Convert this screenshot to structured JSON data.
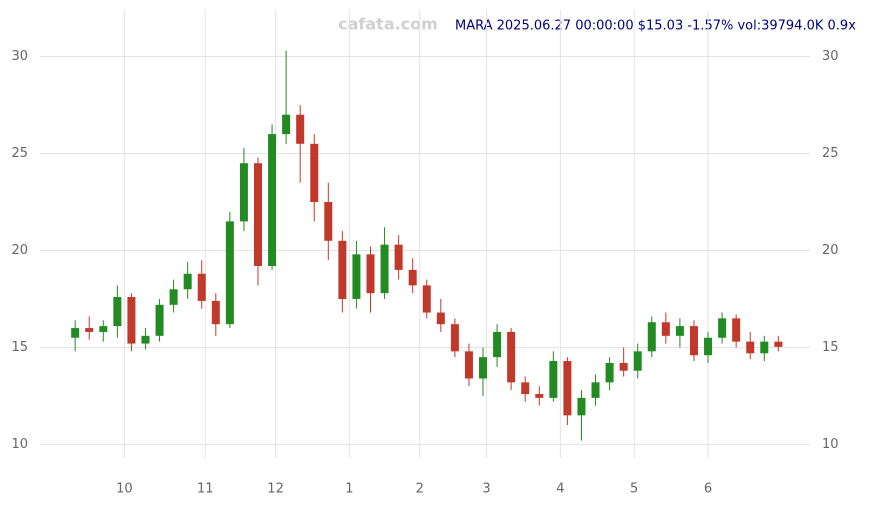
{
  "chart_data": {
    "type": "candlestick",
    "watermark": "cafata.com",
    "title": "MARA 2025.06.27 00:00:00 $15.03 -1.57% vol:39794.0K 0.9x",
    "x": [
      -14,
      -10,
      -6,
      -2,
      2,
      6,
      10,
      14,
      18,
      22,
      26,
      30,
      34,
      38,
      42,
      46,
      50,
      54,
      58,
      62,
      66,
      70,
      74,
      78,
      82,
      86,
      90,
      94,
      98,
      102,
      106,
      110,
      114,
      118,
      122,
      126,
      130,
      134,
      138,
      142,
      146,
      150,
      154,
      158,
      162,
      166,
      170,
      174,
      178,
      182,
      186
    ],
    "open": [
      15.5,
      16.0,
      15.8,
      16.1,
      17.6,
      15.2,
      15.6,
      17.2,
      18.0,
      18.8,
      17.4,
      16.2,
      21.5,
      24.5,
      19.2,
      26.0,
      27.0,
      25.5,
      22.5,
      20.5,
      17.5,
      19.8,
      17.8,
      20.3,
      19.0,
      18.2,
      16.8,
      16.2,
      14.8,
      13.4,
      14.5,
      15.8,
      13.2,
      12.6,
      12.4,
      14.3,
      11.5,
      12.4,
      13.2,
      14.2,
      13.8,
      14.8,
      16.3,
      15.6,
      16.1,
      14.6,
      15.5,
      16.5,
      15.3,
      14.7,
      15.3
    ],
    "high": [
      16.4,
      16.6,
      16.4,
      18.2,
      17.8,
      16.0,
      17.5,
      18.5,
      19.4,
      19.5,
      17.8,
      22.0,
      25.3,
      24.8,
      26.5,
      30.3,
      27.5,
      26.0,
      23.5,
      21.0,
      20.5,
      20.2,
      21.2,
      20.8,
      19.6,
      18.5,
      17.5,
      16.5,
      15.2,
      15.0,
      16.2,
      16.0,
      13.5,
      13.0,
      14.8,
      14.5,
      12.8,
      13.6,
      14.5,
      15.0,
      15.2,
      16.6,
      16.8,
      16.5,
      16.4,
      15.8,
      16.8,
      16.7,
      15.8,
      15.6,
      15.6
    ],
    "low": [
      14.8,
      15.4,
      15.3,
      15.5,
      14.8,
      14.9,
      15.3,
      16.8,
      17.5,
      17.0,
      15.6,
      16.0,
      21.0,
      18.2,
      19.0,
      25.5,
      23.5,
      21.5,
      19.5,
      16.8,
      17.0,
      16.8,
      17.5,
      18.5,
      17.8,
      16.5,
      15.8,
      14.5,
      13.0,
      12.5,
      14.0,
      12.8,
      12.2,
      12.0,
      12.2,
      11.0,
      10.2,
      12.0,
      12.8,
      13.5,
      13.4,
      14.5,
      15.2,
      15.0,
      14.3,
      14.2,
      15.2,
      15.0,
      14.4,
      14.3,
      14.8
    ],
    "close": [
      16.0,
      15.8,
      16.1,
      17.6,
      15.2,
      15.6,
      17.2,
      18.0,
      18.8,
      17.4,
      16.2,
      21.5,
      24.5,
      19.2,
      26.0,
      27.0,
      25.5,
      22.5,
      20.5,
      17.5,
      19.8,
      17.8,
      20.3,
      19.0,
      18.2,
      16.8,
      16.2,
      14.8,
      13.4,
      14.5,
      15.8,
      13.2,
      12.6,
      12.4,
      14.3,
      11.5,
      12.4,
      13.2,
      14.2,
      13.8,
      14.8,
      16.3,
      15.6,
      16.1,
      14.6,
      15.5,
      16.5,
      15.3,
      14.7,
      15.3,
      15.03
    ],
    "up_color": "#228b22",
    "down_color": "#c0392b",
    "xlim": [
      -24,
      195
    ],
    "xticks": [
      {
        "value": 0,
        "label": "10"
      },
      {
        "value": 23,
        "label": "11"
      },
      {
        "value": 43,
        "label": "12"
      },
      {
        "value": 64,
        "label": "1"
      },
      {
        "value": 84,
        "label": "2"
      },
      {
        "value": 103,
        "label": "3"
      },
      {
        "value": 124,
        "label": "4"
      },
      {
        "value": 145,
        "label": "5"
      },
      {
        "value": 166,
        "label": "6"
      }
    ],
    "ylim": [
      9.3,
      32.4
    ],
    "yticks": [
      10,
      15,
      20,
      25,
      30
    ],
    "grid": true
  }
}
